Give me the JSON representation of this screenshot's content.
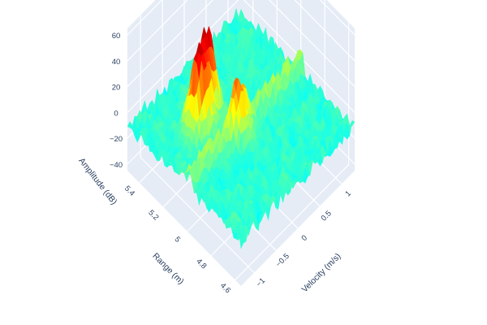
{
  "chart_data": {
    "type": "surface",
    "title": "",
    "colorscale": "jet",
    "x_axis": {
      "label": "Velocity (m/s)",
      "range": [
        -1.3,
        1.3
      ],
      "ticks": [
        {
          "value": -1,
          "label": "−1"
        },
        {
          "value": -0.5,
          "label": "−0.5"
        },
        {
          "value": 0,
          "label": "0"
        },
        {
          "value": 0.5,
          "label": "0.5"
        },
        {
          "value": 1,
          "label": "1"
        }
      ]
    },
    "y_axis": {
      "label": "Range (m)",
      "range": [
        4.55,
        5.5
      ],
      "ticks": [
        {
          "value": 4.6,
          "label": "4.6"
        },
        {
          "value": 4.8,
          "label": "4.8"
        },
        {
          "value": 5,
          "label": "5"
        },
        {
          "value": 5.2,
          "label": "5.2"
        },
        {
          "value": 5.4,
          "label": "5.4"
        }
      ]
    },
    "z_axis": {
      "label": "Amplitude (dB)",
      "range": [
        -45,
        65
      ],
      "ticks": [
        {
          "value": 60,
          "label": "60"
        },
        {
          "value": 40,
          "label": "40"
        },
        {
          "value": 20,
          "label": "20"
        },
        {
          "value": 0,
          "label": "0"
        },
        {
          "value": -20,
          "label": "−20"
        },
        {
          "value": -40,
          "label": "−40"
        }
      ]
    },
    "surface": {
      "noise_floor_db": -10,
      "noise_amplitude_db": 12,
      "peaks": [
        {
          "velocity": -0.25,
          "range": 5.22,
          "amplitude_db": 55
        },
        {
          "velocity": -0.55,
          "range": 5.18,
          "amplitude_db": 52
        },
        {
          "velocity": -0.15,
          "range": 4.98,
          "amplitude_db": 22
        }
      ],
      "ridge": {
        "range": 5.0,
        "amplitude_db": 5
      }
    }
  }
}
